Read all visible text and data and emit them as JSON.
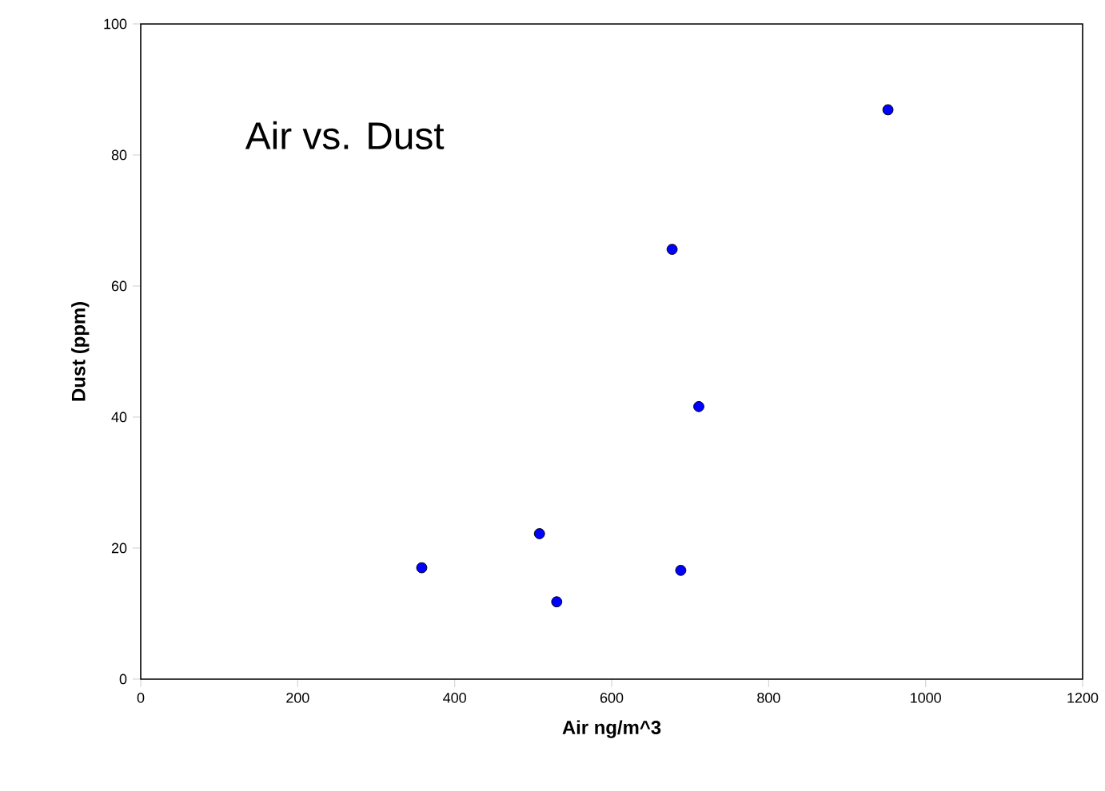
{
  "chart_data": {
    "type": "scatter",
    "title": "Air vs. Dust",
    "xlabel": "Air ng/m^3",
    "ylabel": "Dust (ppm)",
    "x": [
      358,
      508,
      530,
      677,
      688,
      711,
      952
    ],
    "series": [
      {
        "color": "#0000ff",
        "values": [
          17.0,
          22.2,
          11.8,
          65.6,
          16.6,
          41.6,
          86.9
        ]
      }
    ],
    "marker": "circle",
    "xlim": [
      0,
      1200
    ],
    "ylim": [
      0,
      100
    ],
    "xticks": [
      0,
      200,
      400,
      600,
      800,
      1000,
      1200
    ],
    "yticks": [
      0,
      20,
      40,
      60,
      80,
      100
    ]
  }
}
